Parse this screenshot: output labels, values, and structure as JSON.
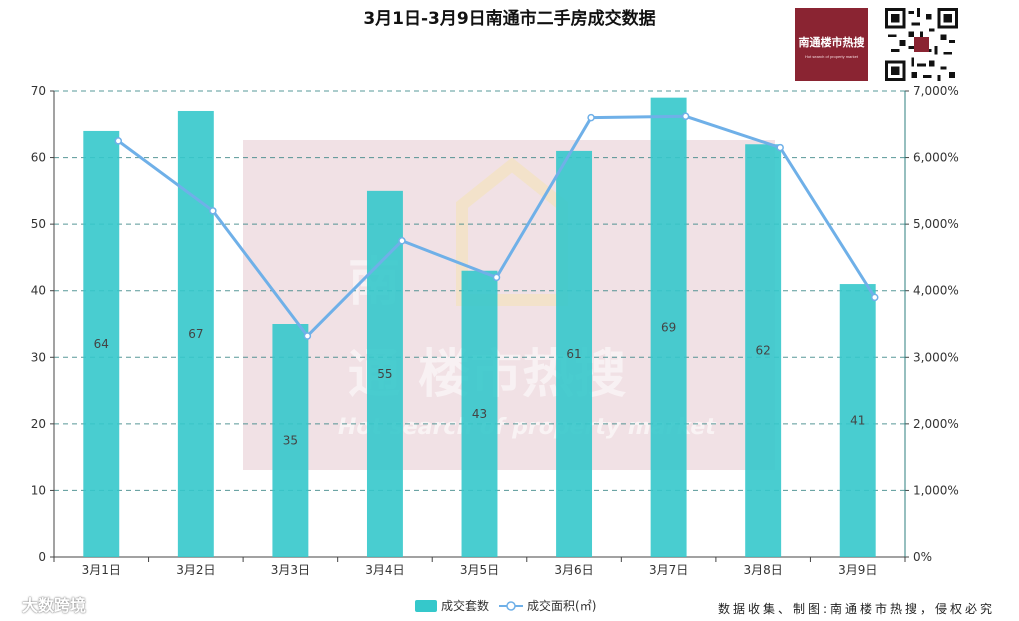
{
  "title": "3月1日-3月9日南通市二手房成交数据",
  "brand": {
    "logo_text": "楼市热搜",
    "logo_prefix": "南通",
    "logo_sub": "Hot search of property market",
    "logo_color": "#8a2432",
    "qr_icon": "qr-code-icon"
  },
  "watermark": {
    "line1": "南",
    "line2": "通 楼市热搜",
    "tagline": "Hot search of property market",
    "corner_label": "大数跨境"
  },
  "footer": {
    "credit": "数据收集、制图:南通楼市热搜，侵权必究"
  },
  "legend": {
    "bar_label": "成交套数",
    "line_label": "成交面积(㎡)"
  },
  "colors": {
    "bar": "#35c8cb",
    "line": "#6fb0e8",
    "grid": "#2e7f7f",
    "axis": "#444444"
  },
  "chart_data": {
    "type": "bar",
    "categories": [
      "3月1日",
      "3月2日",
      "3月3日",
      "3月4日",
      "3月5日",
      "3月6日",
      "3月7日",
      "3月8日",
      "3月9日"
    ],
    "series": [
      {
        "name": "成交套数",
        "type": "bar",
        "axis": "left",
        "values": [
          64,
          67,
          35,
          55,
          43,
          61,
          69,
          62,
          41
        ]
      },
      {
        "name": "成交面积(㎡)",
        "type": "line",
        "axis": "right",
        "values": [
          6250,
          5200,
          3320,
          4750,
          4200,
          6600,
          6620,
          6150,
          3900
        ]
      }
    ],
    "y_left": {
      "min": 0,
      "max": 70,
      "ticks": [
        "0",
        "10",
        "20",
        "30",
        "40",
        "50",
        "60",
        "70"
      ]
    },
    "y_right": {
      "min": 0,
      "max": 7000,
      "ticks": [
        "0%",
        "1,000%",
        "2,000%",
        "3,000%",
        "4,000%",
        "5,000%",
        "6,000%",
        "7,000%"
      ]
    },
    "grid": true,
    "legend_position": "bottom-center",
    "data_labels": true
  }
}
